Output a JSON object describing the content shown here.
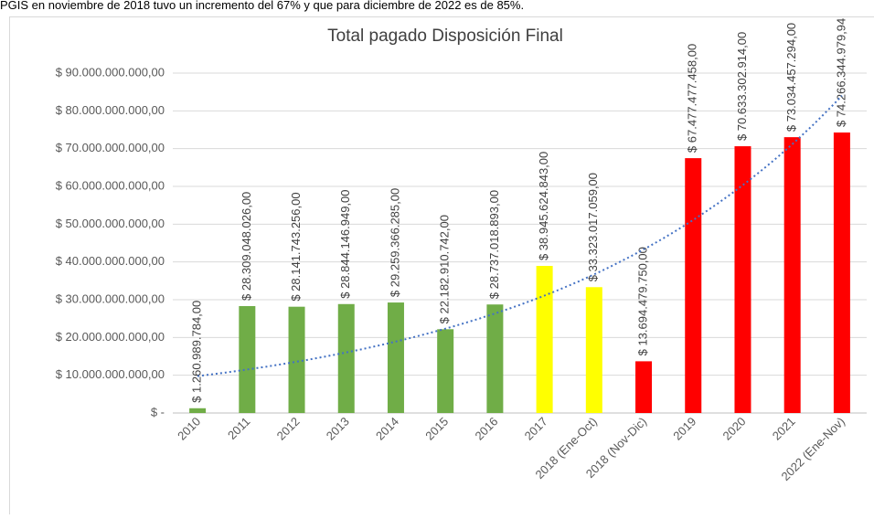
{
  "caption": "PGIS en noviembre de 2018 tuvo un incremento del 67% y que para diciembre de 2022 es de 85%.",
  "chart_data": {
    "type": "bar",
    "title": "Total pagado Disposición Final",
    "categories": [
      "2010",
      "2011",
      "2012",
      "2013",
      "2014",
      "2015",
      "2016",
      "2017",
      "2018 (Ene-Oct)",
      "2018 (Nov-Dic)",
      "2019",
      "2020",
      "2021",
      "2022 (Ene-Nov)"
    ],
    "values": [
      1260989784,
      28309048026,
      28141743256,
      28844146949,
      29259366285,
      22182910742,
      28737018893,
      38945624843,
      33323017059,
      13694479750,
      67477477458,
      70633302914,
      73034457294,
      74266344979.94
    ],
    "value_labels": [
      "$ 1.260.989.784,00",
      "$ 28.309.048.026,00",
      "$ 28.141.743.256,00",
      "$ 28.844.146.949,00",
      "$ 29.259.366.285,00",
      "$ 22.182.910.742,00",
      "$ 28.737.018.893,00",
      "$ 38.945.624.843,00",
      "$ 33.323.017.059,00",
      "$ 13.694.479.750,00",
      "$ 67.477.477.458,00",
      "$ 70.633.302.914,00",
      "$ 73.034.457.294,00",
      "$ 74.266.344.979,94"
    ],
    "colors": [
      "#70ad47",
      "#70ad47",
      "#70ad47",
      "#70ad47",
      "#70ad47",
      "#70ad47",
      "#70ad47",
      "#ffff00",
      "#ffff00",
      "#ff0000",
      "#ff0000",
      "#ff0000",
      "#ff0000",
      "#ff0000"
    ],
    "ylim": [
      0,
      90000000000
    ],
    "yticks": [
      {
        "value": 0,
        "label": "$ -"
      },
      {
        "value": 10000000000,
        "label": "$ 10.000.000.000,00"
      },
      {
        "value": 20000000000,
        "label": "$ 20.000.000.000,00"
      },
      {
        "value": 30000000000,
        "label": "$ 30.000.000.000,00"
      },
      {
        "value": 40000000000,
        "label": "$ 40.000.000.000,00"
      },
      {
        "value": 50000000000,
        "label": "$ 50.000.000.000,00"
      },
      {
        "value": 60000000000,
        "label": "$ 60.000.000.000,00"
      },
      {
        "value": 70000000000,
        "label": "$ 70.000.000.000,00"
      },
      {
        "value": 80000000000,
        "label": "$ 80.000.000.000,00"
      },
      {
        "value": 90000000000,
        "label": "$ 90.000.000.000,00"
      }
    ],
    "grid": true,
    "trendline": {
      "type": "exponential",
      "color": "#4472c4"
    }
  }
}
